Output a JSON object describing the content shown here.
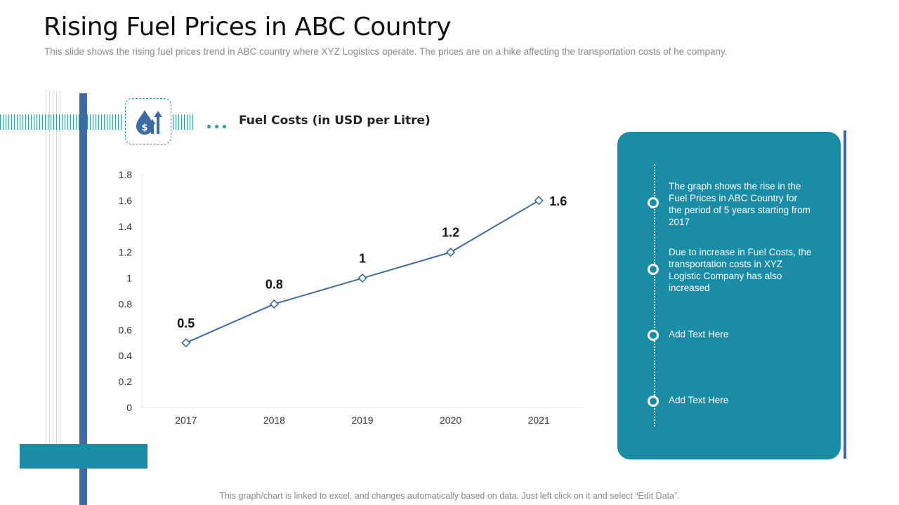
{
  "header": {
    "title": "Rising Fuel Prices in ABC Country",
    "subtitle": "This slide shows the rising fuel prices trend in ABC country where XYZ  Logistics operate. The prices are on a hike affecting the transportation costs of he company."
  },
  "chart_data": {
    "type": "line",
    "title": "Fuel Costs (in USD per Litre)",
    "xlabel": "",
    "ylabel": "",
    "categories": [
      "2017",
      "2018",
      "2019",
      "2020",
      "2021"
    ],
    "values": [
      0.5,
      0.8,
      1,
      1.2,
      1.6
    ],
    "data_labels": [
      "0.5",
      "0.8",
      "1",
      "1.2",
      "1.6"
    ],
    "ylim": [
      0,
      1.8
    ],
    "yticks": [
      "0",
      "0.2",
      "0.4",
      "0.6",
      "0.8",
      "1",
      "1.2",
      "1.4",
      "1.6",
      "1.8"
    ],
    "grid": false,
    "marker": "diamond",
    "line_color": "#3d6ba3"
  },
  "panel": {
    "items": [
      {
        "text": "The graph shows the rise in the Fuel Prices in ABC Country for the period of 5 years starting from 2017"
      },
      {
        "text": "Due to increase in Fuel Costs, the transportation costs in XYZ Logistic Company has also increased"
      },
      {
        "text": "Add Text Here"
      },
      {
        "text": "Add Text Here"
      }
    ]
  },
  "footer": {
    "note": "This graph/chart is linked to excel, and changes automatically based on data. Just left click on it and select “Edit Data”."
  },
  "icons": {
    "fuel": "fuel-price-rise-icon"
  },
  "colors": {
    "accent_teal": "#1b8ca6",
    "accent_blue": "#3d6ba3"
  }
}
